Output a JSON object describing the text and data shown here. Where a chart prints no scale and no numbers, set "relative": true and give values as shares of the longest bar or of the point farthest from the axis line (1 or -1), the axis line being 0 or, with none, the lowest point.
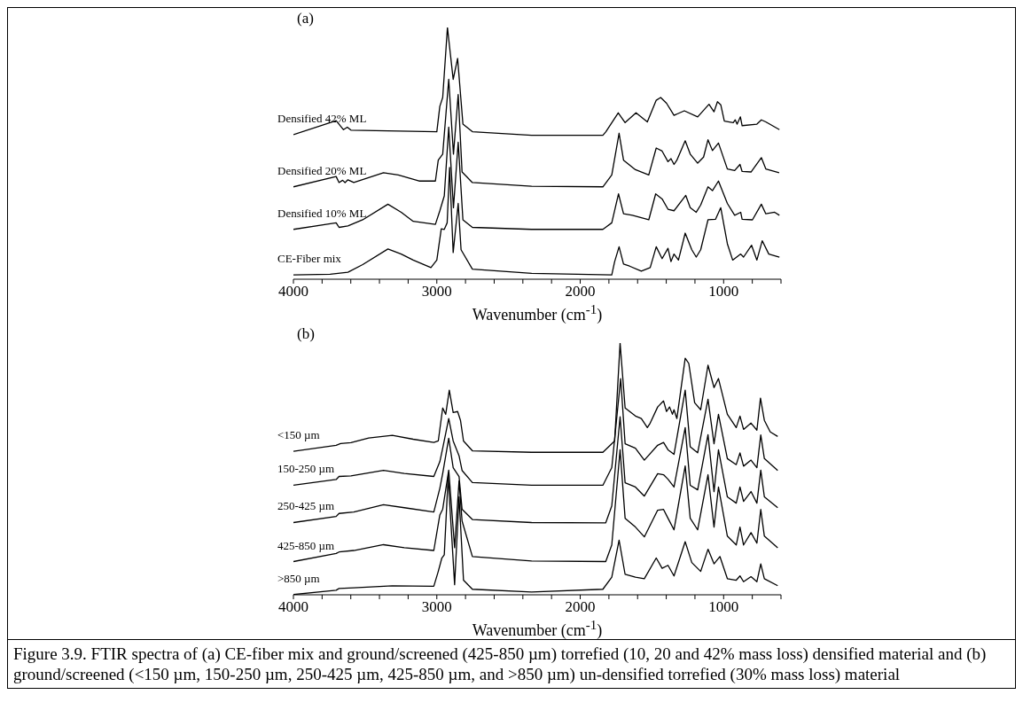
{
  "chart_data": [
    {
      "type": "line",
      "title": "(a)",
      "xlabel": "Wavenumber (cm$^{-1}$)",
      "relative": true,
      "marker": "none",
      "line_style": "solid",
      "xlim": [
        4000,
        600
      ],
      "xticks": [
        4000,
        {
          "value": 3800,
          "label": null
        },
        {
          "value": 3600,
          "label": null
        },
        {
          "value": 3400,
          "label": null
        },
        {
          "value": 3200,
          "label": null
        },
        3000,
        {
          "value": 2800,
          "label": null
        },
        {
          "value": 2600,
          "label": null
        },
        {
          "value": 2400,
          "label": null
        },
        {
          "value": 2200,
          "label": null
        },
        2000,
        {
          "value": 1800,
          "label": null
        },
        {
          "value": 1600,
          "label": null
        },
        {
          "value": 1400,
          "label": null
        },
        {
          "value": 1200,
          "label": null
        },
        1000,
        {
          "value": 800,
          "label": null
        },
        {
          "value": 600,
          "label": null
        }
      ],
      "series": [
        {
          "name": "Densified 42% ML",
          "color": "#000000",
          "x": [
            4000,
            3702,
            3651,
            3624,
            3599,
            3000,
            2979,
            2959,
            2926,
            2886,
            2855,
            2818,
            2752,
            2339,
            1842,
            1821,
            1735,
            1687,
            1611,
            1532,
            1470,
            1439,
            1398,
            1346,
            1274,
            1181,
            1102,
            1067,
            1043,
            1020,
            995,
            933,
            919,
            906,
            883,
            871,
            768,
            737,
            706,
            611
          ],
          "values": [
            0.574,
            0.63,
            0.594,
            0.604,
            0.592,
            0.586,
            0.687,
            0.722,
            1.0,
            0.794,
            0.877,
            0.616,
            0.586,
            0.572,
            0.572,
            0.586,
            0.661,
            0.622,
            0.661,
            0.625,
            0.711,
            0.722,
            0.699,
            0.651,
            0.669,
            0.645,
            0.695,
            0.665,
            0.705,
            0.693,
            0.628,
            0.622,
            0.633,
            0.616,
            0.645,
            0.61,
            0.616,
            0.633,
            0.625,
            0.594
          ]
        },
        {
          "name": "Densified 20% ML",
          "color": "#000000",
          "x": [
            4000,
            3702,
            3682,
            3657,
            3640,
            3620,
            3579,
            3372,
            3269,
            3124,
            3010,
            2990,
            2959,
            2917,
            2884,
            2851,
            2824,
            2752,
            2339,
            1842,
            1780,
            1729,
            1698,
            1615,
            1522,
            1470,
            1429,
            1388,
            1367,
            1346,
            1326,
            1268,
            1233,
            1181,
            1140,
            1109,
            1078,
            1036,
            974,
            923,
            886,
            871,
            809,
            737,
            706,
            613
          ],
          "values": [
            0.367,
            0.408,
            0.384,
            0.393,
            0.384,
            0.395,
            0.384,
            0.423,
            0.414,
            0.39,
            0.39,
            0.473,
            0.497,
            0.794,
            0.497,
            0.734,
            0.426,
            0.384,
            0.369,
            0.367,
            0.414,
            0.58,
            0.473,
            0.435,
            0.414,
            0.521,
            0.509,
            0.467,
            0.479,
            0.456,
            0.473,
            0.55,
            0.497,
            0.461,
            0.485,
            0.554,
            0.511,
            0.541,
            0.438,
            0.432,
            0.456,
            0.428,
            0.426,
            0.483,
            0.438,
            0.423
          ]
        },
        {
          "name": "Densified 10% ML",
          "color": "#000000",
          "x": [
            4000,
            3702,
            3682,
            3620,
            3517,
            3341,
            3248,
            3165,
            3010,
            2979,
            2948,
            2917,
            2884,
            2851,
            2818,
            2752,
            2339,
            1842,
            1780,
            1733,
            1698,
            1636,
            1522,
            1474,
            1429,
            1388,
            1346,
            1264,
            1233,
            1191,
            1160,
            1109,
            1078,
            1036,
            974,
            923,
            881,
            871,
            799,
            737,
            706,
            644,
            611
          ],
          "values": [
            0.198,
            0.224,
            0.206,
            0.212,
            0.236,
            0.298,
            0.266,
            0.23,
            0.218,
            0.272,
            0.331,
            0.604,
            0.284,
            0.544,
            0.236,
            0.206,
            0.198,
            0.198,
            0.224,
            0.339,
            0.26,
            0.254,
            0.236,
            0.339,
            0.319,
            0.278,
            0.272,
            0.333,
            0.284,
            0.266,
            0.295,
            0.367,
            0.352,
            0.39,
            0.301,
            0.254,
            0.266,
            0.238,
            0.236,
            0.298,
            0.26,
            0.266,
            0.254
          ]
        },
        {
          "name": "CE-Fiber mix",
          "color": "#000000",
          "x": [
            4000,
            3744,
            3620,
            3517,
            3341,
            3248,
            3165,
            3041,
            3000,
            2969,
            2948,
            2928,
            2911,
            2886,
            2851,
            2831,
            2752,
            2339,
            1780,
            1760,
            1729,
            1698,
            1656,
            1574,
            1512,
            1470,
            1429,
            1388,
            1367,
            1346,
            1315,
            1268,
            1222,
            1191,
            1160,
            1109,
            1057,
            1020,
            974,
            937,
            881,
            861,
            805,
            768,
            731,
            685,
            611
          ],
          "values": [
            0.017,
            0.02,
            0.028,
            0.058,
            0.12,
            0.1,
            0.076,
            0.046,
            0.076,
            0.2,
            0.198,
            0.224,
            0.444,
            0.106,
            0.301,
            0.117,
            0.04,
            0.023,
            0.017,
            0.07,
            0.129,
            0.06,
            0.052,
            0.032,
            0.046,
            0.129,
            0.082,
            0.123,
            0.07,
            0.1,
            0.076,
            0.183,
            0.117,
            0.088,
            0.117,
            0.236,
            0.238,
            0.284,
            0.141,
            0.076,
            0.1,
            0.088,
            0.135,
            0.076,
            0.153,
            0.1,
            0.088
          ]
        }
      ]
    },
    {
      "type": "line",
      "title": "(b)",
      "xlabel": "Wavenumber (cm$^{-1}$)",
      "relative": true,
      "marker": "none",
      "line_style": "solid",
      "xlim": [
        4000,
        600
      ],
      "xticks": [
        4000,
        {
          "value": 3800,
          "label": null
        },
        {
          "value": 3600,
          "label": null
        },
        {
          "value": 3400,
          "label": null
        },
        {
          "value": 3200,
          "label": null
        },
        3000,
        {
          "value": 2800,
          "label": null
        },
        {
          "value": 2600,
          "label": null
        },
        {
          "value": 2400,
          "label": null
        },
        {
          "value": 2200,
          "label": null
        },
        2000,
        {
          "value": 1800,
          "label": null
        },
        {
          "value": 1600,
          "label": null
        },
        {
          "value": 1400,
          "label": null
        },
        {
          "value": 1200,
          "label": null
        },
        1000,
        {
          "value": 800,
          "label": null
        },
        {
          "value": 600,
          "label": null
        }
      ],
      "annotations": [
        "Figure 3.9. FTIR spectra of (a) CE-fiber mix and ground/screened (425-850 µm) torrefied (10, 20 and 42% mass loss) densified material and (b) ground/screened (<150 µm, 150-250 µm, 250-425 µm, 425-850 µm, and >850 µm) un-densified torrefied (30% mass loss) material"
      ],
      "series": [
        {
          "name": "<150 µm",
          "color": "#000000",
          "x": [
            4000,
            3702,
            3671,
            3599,
            3475,
            3310,
            3165,
            3021,
            2990,
            2959,
            2938,
            2913,
            2886,
            2855,
            2835,
            2814,
            2752,
            2339,
            1842,
            1760,
            1722,
            1687,
            1615,
            1574,
            1532,
            1512,
            1460,
            1419,
            1398,
            1377,
            1357,
            1346,
            1326,
            1268,
            1243,
            1202,
            1160,
            1109,
            1067,
            1036,
            974,
            912,
            886,
            861,
            809,
            768,
            743,
            716,
            675,
            623
          ],
          "values": [
            0.57,
            0.594,
            0.601,
            0.604,
            0.623,
            0.633,
            0.618,
            0.605,
            0.611,
            0.742,
            0.717,
            0.813,
            0.724,
            0.728,
            0.693,
            0.611,
            0.572,
            0.566,
            0.566,
            0.611,
            1.0,
            0.742,
            0.71,
            0.7,
            0.664,
            0.682,
            0.746,
            0.77,
            0.728,
            0.746,
            0.717,
            0.735,
            0.7,
            0.94,
            0.919,
            0.763,
            0.735,
            0.912,
            0.823,
            0.859,
            0.717,
            0.664,
            0.71,
            0.657,
            0.682,
            0.654,
            0.781,
            0.693,
            0.647,
            0.629
          ]
        },
        {
          "name": "150-250 µm",
          "color": "#000000",
          "x": [
            4000,
            3702,
            3682,
            3599,
            3372,
            3227,
            3021,
            2979,
            2959,
            2917,
            2886,
            2845,
            2824,
            2752,
            2339,
            1842,
            1780,
            1718,
            1687,
            1615,
            1553,
            1460,
            1419,
            1388,
            1346,
            1268,
            1233,
            1181,
            1109,
            1067,
            1036,
            974,
            912,
            886,
            861,
            809,
            768,
            741,
            716,
            623
          ],
          "values": [
            0.435,
            0.458,
            0.47,
            0.472,
            0.494,
            0.482,
            0.47,
            0.529,
            0.582,
            0.7,
            0.611,
            0.552,
            0.494,
            0.446,
            0.435,
            0.435,
            0.505,
            0.859,
            0.6,
            0.582,
            0.535,
            0.594,
            0.605,
            0.576,
            0.558,
            0.813,
            0.588,
            0.564,
            0.777,
            0.6,
            0.717,
            0.541,
            0.517,
            0.564,
            0.511,
            0.535,
            0.505,
            0.635,
            0.541,
            0.494
          ]
        },
        {
          "name": "250-425 µm",
          "color": "#000000",
          "x": [
            4000,
            3702,
            3682,
            3579,
            3372,
            3227,
            3021,
            2979,
            2959,
            2917,
            2886,
            2845,
            2824,
            2752,
            2339,
            1822,
            1780,
            1722,
            1687,
            1615,
            1553,
            1460,
            1419,
            1388,
            1346,
            1268,
            1233,
            1181,
            1109,
            1067,
            1036,
            974,
            912,
            886,
            861,
            809,
            768,
            741,
            716,
            623
          ],
          "values": [
            0.287,
            0.311,
            0.323,
            0.329,
            0.358,
            0.346,
            0.329,
            0.423,
            0.482,
            0.622,
            0.505,
            0.47,
            0.34,
            0.299,
            0.287,
            0.286,
            0.353,
            0.707,
            0.445,
            0.428,
            0.392,
            0.481,
            0.477,
            0.459,
            0.428,
            0.664,
            0.435,
            0.417,
            0.636,
            0.41,
            0.576,
            0.389,
            0.364,
            0.428,
            0.371,
            0.41,
            0.364,
            0.495,
            0.389,
            0.346
          ]
        },
        {
          "name": "425-850 µm",
          "color": "#000000",
          "x": [
            4000,
            3702,
            3682,
            3579,
            3372,
            3227,
            3021,
            2979,
            2959,
            2917,
            2876,
            2845,
            2824,
            2752,
            2339,
            1822,
            1780,
            1722,
            1687,
            1615,
            1553,
            1460,
            1419,
            1388,
            1346,
            1268,
            1233,
            1181,
            1109,
            1067,
            1036,
            974,
            912,
            886,
            861,
            809,
            768,
            741,
            716,
            623
          ],
          "values": [
            0.132,
            0.164,
            0.17,
            0.176,
            0.199,
            0.187,
            0.176,
            0.317,
            0.34,
            0.495,
            0.187,
            0.452,
            0.293,
            0.152,
            0.134,
            0.132,
            0.198,
            0.576,
            0.304,
            0.269,
            0.23,
            0.336,
            0.339,
            0.304,
            0.258,
            0.512,
            0.304,
            0.258,
            0.477,
            0.269,
            0.428,
            0.233,
            0.198,
            0.269,
            0.198,
            0.247,
            0.205,
            0.339,
            0.233,
            0.187
          ]
        },
        {
          "name": ">850 µm",
          "color": "#000000",
          "x": [
            4000,
            3702,
            3682,
            3579,
            3310,
            3021,
            2990,
            2965,
            2948,
            2921,
            2876,
            2845,
            2814,
            2752,
            2339,
            1842,
            1780,
            1729,
            1687,
            1615,
            1553,
            1470,
            1429,
            1388,
            1346,
            1268,
            1222,
            1160,
            1109,
            1067,
            1026,
            974,
            912,
            886,
            861,
            809,
            768,
            741,
            716,
            623
          ],
          "values": [
            0.001,
            0.018,
            0.025,
            0.028,
            0.036,
            0.034,
            0.093,
            0.146,
            0.159,
            0.47,
            0.04,
            0.389,
            0.058,
            0.022,
            0.011,
            0.022,
            0.07,
            0.217,
            0.081,
            0.07,
            0.064,
            0.146,
            0.105,
            0.117,
            0.075,
            0.211,
            0.128,
            0.093,
            0.181,
            0.123,
            0.152,
            0.064,
            0.058,
            0.075,
            0.052,
            0.072,
            0.052,
            0.123,
            0.064,
            0.036
          ]
        }
      ]
    }
  ]
}
